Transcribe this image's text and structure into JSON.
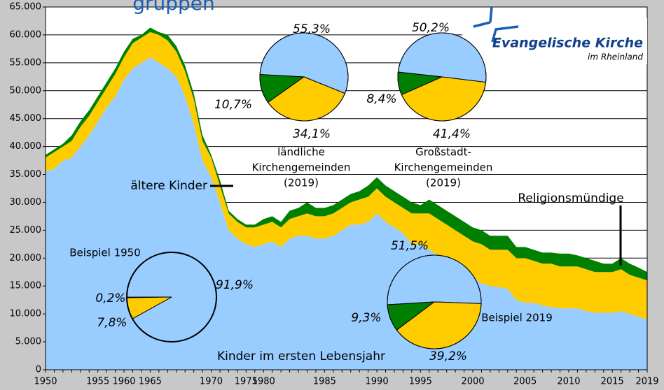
{
  "chart_data": {
    "type": "area",
    "title": "gruppen",
    "categories": [
      "1950",
      null,
      null,
      null,
      null,
      null,
      "1955",
      null,
      null,
      "1960",
      null,
      null,
      "1965",
      null,
      null,
      null,
      null,
      null,
      null,
      "1970",
      null,
      null,
      null,
      "1975",
      null,
      "1980",
      null,
      null,
      null,
      null,
      null,
      null,
      "1985",
      null,
      null,
      null,
      null,
      null,
      "1990",
      null,
      null,
      null,
      null,
      "1995",
      null,
      null,
      null,
      null,
      null,
      "2000",
      null,
      null,
      null,
      null,
      null,
      "2005",
      null,
      null,
      null,
      null,
      "2010",
      null,
      null,
      null,
      null,
      "2015",
      null,
      null,
      null,
      "2019"
    ],
    "series": [
      {
        "name": "Kinder im ersten Lebensjahr",
        "color": "#99ccff",
        "values": [
          35500,
          36000,
          37500,
          38000,
          40000,
          42000,
          44500,
          47000,
          49000,
          52000,
          54000,
          55000,
          56000,
          55000,
          54000,
          52500,
          49000,
          44000,
          37500,
          34500,
          30000,
          25000,
          23500,
          22500,
          22000,
          22500,
          23000,
          22000,
          23500,
          24000,
          24000,
          23500,
          23500,
          24000,
          25000,
          26000,
          26000,
          26500,
          28000,
          26500,
          25500,
          24500,
          22500,
          22500,
          21500,
          20500,
          19000,
          18000,
          17000,
          16500,
          15500,
          15000,
          14800,
          14500,
          12500,
          12000,
          12000,
          11500,
          11200,
          11000,
          11000,
          11000,
          10500,
          10200,
          10200,
          10200,
          10500,
          10000,
          9500,
          9000
        ]
      },
      {
        "name": "ältere Kinder",
        "color": "#ffcc00",
        "values": [
          2500,
          3000,
          2500,
          3000,
          3500,
          3500,
          3500,
          3500,
          4000,
          4000,
          4500,
          4500,
          4500,
          5000,
          5000,
          4500,
          4500,
          4500,
          3500,
          3500,
          3000,
          3000,
          3000,
          3000,
          3500,
          3500,
          3500,
          3500,
          3500,
          3500,
          4000,
          4000,
          4000,
          4000,
          4000,
          4000,
          4500,
          4500,
          4500,
          4500,
          4500,
          4500,
          5500,
          5500,
          6500,
          6500,
          7000,
          7000,
          7000,
          6500,
          7000,
          6500,
          6700,
          7000,
          7500,
          8000,
          7500,
          7500,
          7800,
          7500,
          7500,
          7500,
          7500,
          7300,
          7300,
          7300,
          7500,
          7000,
          7000,
          7000
        ]
      },
      {
        "name": "Religionsmündige",
        "color": "#008000",
        "values": [
          500,
          500,
          500,
          1000,
          1000,
          1000,
          1000,
          1000,
          1000,
          1000,
          800,
          500,
          800,
          500,
          1000,
          1000,
          1000,
          1000,
          1000,
          500,
          1000,
          500,
          500,
          500,
          500,
          1000,
          1000,
          1000,
          1500,
          1500,
          2000,
          1500,
          1500,
          1500,
          1500,
          1500,
          1500,
          2000,
          2000,
          2000,
          2000,
          2000,
          2000,
          1500,
          2500,
          2500,
          2500,
          2500,
          2500,
          2500,
          2500,
          2500,
          2500,
          2500,
          2000,
          2000,
          2000,
          2000,
          2000,
          2300,
          2300,
          2000,
          2000,
          2000,
          1500,
          1500,
          2000,
          2000,
          1800,
          1500
        ]
      }
    ],
    "ylim": [
      0,
      65000
    ],
    "yticks": [
      0,
      {
        "value": 5000,
        "label": "5.000"
      },
      {
        "value": 10000,
        "label": "10.000"
      },
      {
        "value": 15000,
        "label": "15.000"
      },
      {
        "value": 20000,
        "label": "20.000"
      },
      {
        "value": 25000,
        "label": "25.000"
      },
      {
        "value": 30000,
        "label": "30.000"
      },
      {
        "value": 35000,
        "label": "35.000"
      },
      {
        "value": 40000,
        "label": "40.000"
      },
      {
        "value": 45000,
        "label": "45.000"
      },
      {
        "value": 50000,
        "label": "50.000"
      },
      {
        "value": 55000,
        "label": "55.000"
      },
      {
        "value": 60000,
        "label": "60.000"
      },
      {
        "value": 65000,
        "label": "65.000"
      }
    ],
    "grid": true,
    "pies": [
      {
        "title": [
          "ländliche",
          "Kirchengemeinden",
          "(2019)"
        ],
        "values": [
          55.3,
          34.1,
          10.7
        ],
        "value_labels": [
          "55,3%",
          "34,1%",
          "10,7%"
        ]
      },
      {
        "title": [
          "Großstadt-",
          "Kirchengemeinden",
          "(2019)"
        ],
        "values": [
          50.2,
          41.4,
          8.4
        ],
        "value_labels": [
          "50,2%",
          "41,4%",
          "8,4%"
        ]
      },
      {
        "title": [
          "Beispiel 2019"
        ],
        "values": [
          51.5,
          39.2,
          9.3
        ],
        "value_labels": [
          "51,5%",
          "39,2%",
          "9,3%"
        ]
      },
      {
        "title": [
          "Beispiel 1950"
        ],
        "values": [
          91.9,
          7.8,
          0.2
        ],
        "value_labels": [
          "91,9%",
          "7,8%",
          "0,2%"
        ]
      }
    ]
  },
  "logo": {
    "name": "Evangelische Kirche",
    "sub": "im Rheinland"
  }
}
